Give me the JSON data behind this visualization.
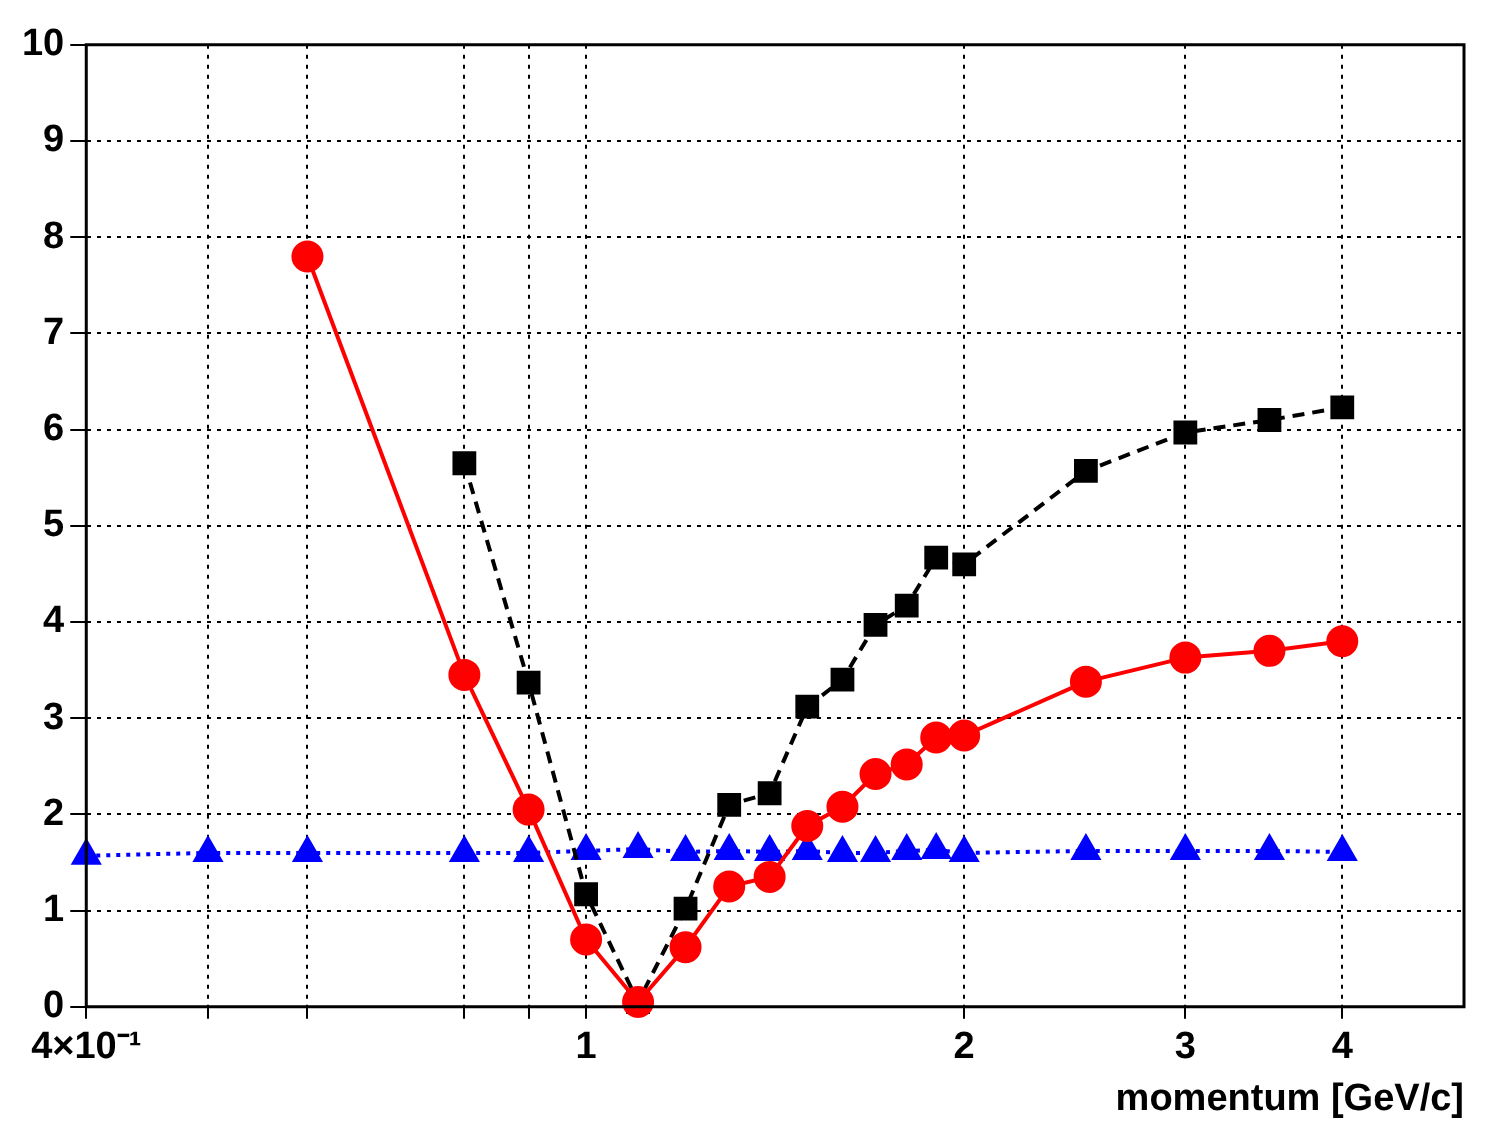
{
  "chart_data": {
    "type": "line",
    "xlabel": "momentum [GeV/c]",
    "log": "x",
    "grid": true,
    "legend": false,
    "xlim": [
      0.4,
      5
    ],
    "xticks": [
      {
        "value": 0.4,
        "label": "4×10⁻¹"
      },
      {
        "value": 0.5,
        "label": null
      },
      {
        "value": 0.6,
        "label": null
      },
      {
        "value": 0.8,
        "label": null
      },
      {
        "value": 0.9,
        "label": null
      },
      1,
      2,
      3,
      4
    ],
    "ylim": [
      0,
      10
    ],
    "yticks": [
      0,
      1,
      2,
      3,
      4,
      5,
      6,
      7,
      8,
      9,
      10
    ],
    "series": [
      {
        "color": "#ff0000",
        "marker": "circle",
        "line_style": "solid",
        "x": [
          0.6,
          0.8,
          0.9,
          1.0,
          1.1,
          1.2,
          1.3,
          1.4,
          1.5,
          1.6,
          1.7,
          1.8,
          1.9,
          2.0,
          2.5,
          3,
          3.5,
          4
        ],
        "values": [
          7.8,
          3.45,
          2.05,
          0.7,
          0.05,
          0.62,
          1.25,
          1.35,
          1.88,
          2.08,
          2.42,
          2.52,
          2.8,
          2.82,
          3.38,
          3.63,
          3.7,
          3.8
        ]
      },
      {
        "color": "#000000",
        "marker": "square",
        "line_style": "dashed",
        "x": [
          0.8,
          0.9,
          1.0,
          1.1,
          1.2,
          1.3,
          1.4,
          1.5,
          1.6,
          1.7,
          1.8,
          1.9,
          2.0,
          2.5,
          3,
          3.5,
          4
        ],
        "values": [
          5.65,
          3.37,
          1.17,
          0.05,
          1.02,
          2.1,
          2.22,
          3.12,
          3.4,
          3.97,
          4.17,
          4.67,
          4.6,
          5.57,
          5.97,
          6.1,
          6.23
        ]
      },
      {
        "color": "#0000ff",
        "marker": "triangle",
        "line_style": "dotted",
        "x": [
          0.4,
          0.5,
          0.6,
          0.8,
          0.9,
          1.0,
          1.1,
          1.2,
          1.3,
          1.4,
          1.5,
          1.6,
          1.7,
          1.8,
          1.9,
          2.0,
          2.5,
          3,
          3.5,
          4
        ],
        "values": [
          1.57,
          1.6,
          1.6,
          1.6,
          1.6,
          1.62,
          1.64,
          1.61,
          1.62,
          1.61,
          1.62,
          1.6,
          1.6,
          1.62,
          1.63,
          1.6,
          1.62,
          1.62,
          1.62,
          1.61
        ]
      }
    ]
  }
}
